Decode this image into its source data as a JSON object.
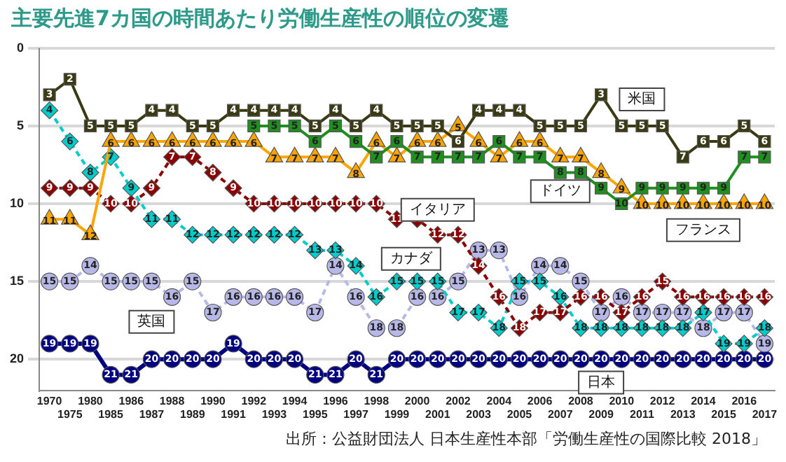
{
  "chart_data": {
    "type": "line",
    "title": "主要先進7カ国の時間あたり労働生産性の順位の変遷",
    "categories": [
      "1970",
      "1975",
      "1980",
      "1985",
      "1986",
      "1987",
      "1988",
      "1989",
      "1990",
      "1991",
      "1992",
      "1993",
      "1994",
      "1995",
      "1996",
      "1997",
      "1998",
      "1999",
      "2000",
      "2001",
      "2002",
      "2003",
      "2004",
      "2005",
      "2006",
      "2007",
      "2008",
      "2009",
      "2010",
      "2011",
      "2012",
      "2013",
      "2014",
      "2015",
      "2016",
      "2017"
    ],
    "series": [
      {
        "name": "米国",
        "color": "#3a3a14",
        "marker": "square",
        "line_style": "solid",
        "values": [
          3,
          2,
          5,
          5,
          5,
          4,
          4,
          5,
          5,
          4,
          4,
          4,
          4,
          5,
          4,
          5,
          4,
          5,
          5,
          5,
          6,
          4,
          4,
          4,
          5,
          5,
          5,
          3,
          5,
          5,
          5,
          7,
          6,
          6,
          5,
          6
        ]
      },
      {
        "name": "ドイツ",
        "color": "#1f8f1f",
        "marker": "square",
        "line_style": "solid",
        "values": [
          null,
          null,
          null,
          null,
          null,
          null,
          null,
          null,
          null,
          null,
          5,
          5,
          5,
          6,
          5,
          6,
          7,
          6,
          7,
          7,
          7,
          7,
          6,
          7,
          7,
          8,
          8,
          9,
          10,
          9,
          9,
          9,
          9,
          9,
          7,
          7
        ]
      },
      {
        "name": "フランス",
        "color": "#ffa500",
        "marker": "triangle",
        "line_style": "solid",
        "values": [
          11,
          11,
          12,
          6,
          6,
          6,
          6,
          6,
          6,
          6,
          6,
          7,
          7,
          7,
          7,
          8,
          6,
          7,
          6,
          6,
          5,
          6,
          7,
          6,
          6,
          7,
          7,
          8,
          9,
          10,
          10,
          10,
          10,
          10,
          10,
          10
        ]
      },
      {
        "name": "イタリア",
        "color": "#8b0000",
        "marker": "diamond",
        "line_style": "dashed",
        "values": [
          9,
          9,
          9,
          10,
          10,
          9,
          7,
          7,
          8,
          9,
          10,
          10,
          10,
          10,
          10,
          10,
          10,
          11,
          11,
          12,
          12,
          14,
          16,
          18,
          17,
          17,
          16,
          16,
          17,
          16,
          15,
          16,
          16,
          16,
          16,
          16
        ]
      },
      {
        "name": "カナダ",
        "color": "#00cccc",
        "marker": "diamond",
        "line_style": "dashed",
        "values": [
          4,
          6,
          8,
          7,
          9,
          11,
          11,
          12,
          12,
          12,
          12,
          12,
          12,
          13,
          13,
          14,
          16,
          15,
          15,
          15,
          17,
          17,
          18,
          15,
          15,
          16,
          18,
          18,
          18,
          18,
          18,
          18,
          17,
          19,
          19,
          18
        ]
      },
      {
        "name": "英国",
        "color": "#b8b8e8",
        "marker": "circle",
        "line_style": "dashed",
        "values": [
          15,
          15,
          14,
          15,
          15,
          15,
          16,
          15,
          17,
          16,
          16,
          16,
          16,
          17,
          14,
          16,
          18,
          18,
          16,
          16,
          15,
          13,
          13,
          16,
          14,
          14,
          15,
          17,
          16,
          17,
          17,
          17,
          18,
          17,
          17,
          19
        ]
      },
      {
        "name": "日本",
        "color": "#000080",
        "marker": "circle",
        "line_style": "solid",
        "values": [
          19,
          19,
          19,
          21,
          21,
          20,
          20,
          20,
          20,
          19,
          20,
          20,
          20,
          21,
          21,
          20,
          21,
          20,
          20,
          20,
          20,
          20,
          20,
          20,
          20,
          20,
          20,
          20,
          20,
          20,
          20,
          20,
          20,
          20,
          20,
          20
        ]
      }
    ],
    "ylim": [
      22,
      0
    ],
    "yticks": [
      0,
      5,
      10,
      15,
      20
    ],
    "grid": "y",
    "legend": false,
    "data_labels": true,
    "annotations": [
      "出所：公益財団法人 日本生産性本部「労働生産性の国際比較 2018」"
    ]
  }
}
